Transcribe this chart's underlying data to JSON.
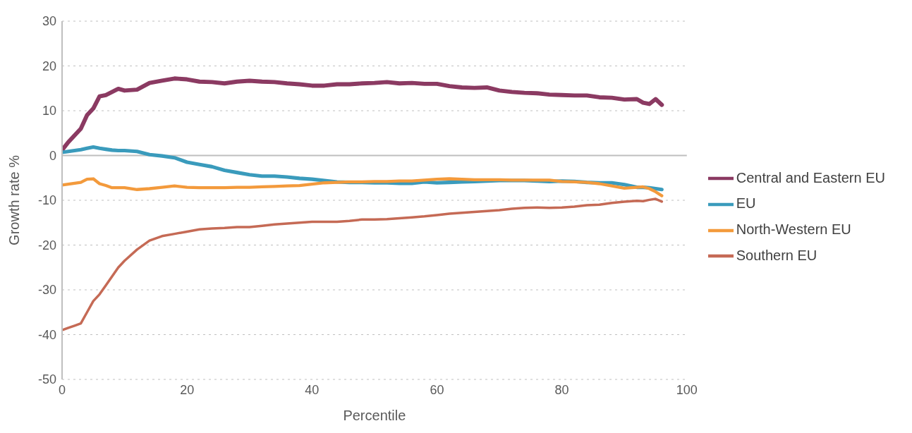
{
  "chart_data": {
    "type": "line",
    "xlabel": "Percentile",
    "ylabel": "Growth rate %",
    "x": [
      0,
      1,
      2,
      3,
      4,
      5,
      6,
      7,
      8,
      9,
      10,
      12,
      14,
      16,
      18,
      20,
      22,
      24,
      26,
      28,
      30,
      32,
      34,
      36,
      38,
      40,
      42,
      44,
      46,
      48,
      50,
      52,
      54,
      56,
      58,
      60,
      62,
      64,
      66,
      68,
      70,
      72,
      74,
      76,
      78,
      80,
      82,
      84,
      86,
      88,
      90,
      92,
      93,
      94,
      95,
      96
    ],
    "series": [
      {
        "name": "Central and Eastern EU",
        "color": "#8b3a62",
        "values": [
          1.2,
          3,
          4.5,
          6,
          9,
          10.5,
          13.2,
          13.5,
          14.2,
          14.9,
          14.5,
          14.7,
          16.2,
          16.7,
          17.2,
          17,
          16.5,
          16.4,
          16.1,
          16.5,
          16.7,
          16.5,
          16.4,
          16.1,
          15.9,
          15.6,
          15.6,
          15.9,
          15.9,
          16.1,
          16.2,
          16.4,
          16.1,
          16.2,
          16,
          16,
          15.5,
          15.2,
          15.1,
          15.2,
          14.5,
          14.2,
          14,
          13.9,
          13.6,
          13.5,
          13.4,
          13.4,
          13,
          12.9,
          12.5,
          12.6,
          11.8,
          11.5,
          12.6,
          11.3
        ]
      },
      {
        "name": "EU",
        "color": "#3a9bbc",
        "values": [
          0.7,
          0.9,
          1.1,
          1.3,
          1.6,
          1.9,
          1.6,
          1.4,
          1.2,
          1.1,
          1.1,
          0.9,
          0.2,
          -0.1,
          -0.5,
          -1.5,
          -2,
          -2.5,
          -3.3,
          -3.8,
          -4.3,
          -4.6,
          -4.6,
          -4.8,
          -5.1,
          -5.3,
          -5.6,
          -5.9,
          -6,
          -6,
          -6.1,
          -6.1,
          -6.2,
          -6.2,
          -5.9,
          -6.1,
          -6,
          -5.9,
          -5.8,
          -5.7,
          -5.6,
          -5.6,
          -5.6,
          -5.7,
          -5.8,
          -5.7,
          -5.8,
          -6,
          -6.1,
          -6.1,
          -6.5,
          -7.1,
          -7.1,
          -7.2,
          -7.4,
          -7.6
        ]
      },
      {
        "name": "North-Western EU",
        "color": "#f39a3c",
        "values": [
          -6.6,
          -6.4,
          -6.2,
          -6,
          -5.3,
          -5.2,
          -6.3,
          -6.7,
          -7.2,
          -7.2,
          -7.2,
          -7.6,
          -7.4,
          -7.1,
          -6.8,
          -7.1,
          -7.2,
          -7.2,
          -7.2,
          -7.1,
          -7.1,
          -7,
          -6.9,
          -6.8,
          -6.7,
          -6.4,
          -6.1,
          -6,
          -5.9,
          -5.9,
          -5.8,
          -5.8,
          -5.7,
          -5.7,
          -5.5,
          -5.3,
          -5.2,
          -5.3,
          -5.4,
          -5.4,
          -5.4,
          -5.5,
          -5.5,
          -5.5,
          -5.5,
          -5.8,
          -5.9,
          -6,
          -6.3,
          -6.8,
          -7.3,
          -7.1,
          -7,
          -7.4,
          -8.1,
          -9
        ]
      },
      {
        "name": "Southern EU",
        "color": "#c56a55",
        "values": [
          -39,
          -38.5,
          -38,
          -37.5,
          -35,
          -32.5,
          -31,
          -29,
          -27,
          -25,
          -23.5,
          -21,
          -19,
          -18,
          -17.5,
          -17,
          -16.5,
          -16.3,
          -16.2,
          -16,
          -16,
          -15.7,
          -15.4,
          -15.2,
          -15,
          -14.8,
          -14.8,
          -14.8,
          -14.6,
          -14.3,
          -14.3,
          -14.2,
          -14,
          -13.8,
          -13.6,
          -13.3,
          -13,
          -12.8,
          -12.6,
          -12.4,
          -12.2,
          -11.9,
          -11.7,
          -11.6,
          -11.7,
          -11.6,
          -11.4,
          -11.1,
          -11,
          -10.6,
          -10.3,
          -10.1,
          -10.2,
          -9.9,
          -9.7,
          -10.3
        ]
      }
    ],
    "xlim": [
      0,
      100
    ],
    "xticks": [
      0,
      20,
      40,
      60,
      80,
      100
    ],
    "ylim": [
      -50,
      30
    ],
    "yticks": [
      -50,
      -40,
      -30,
      -20,
      -10,
      0,
      10,
      20,
      30
    ],
    "ref_lines": [
      {
        "axis": "y",
        "value": 0,
        "color": "#bfbfbf"
      }
    ],
    "grid": "y",
    "legend": "right",
    "marker": "none",
    "line_style": "solid"
  }
}
